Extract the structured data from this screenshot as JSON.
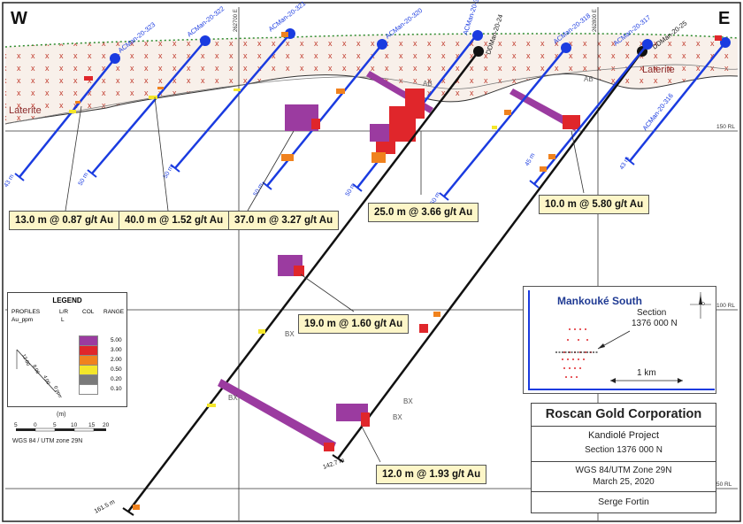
{
  "section_labels": {
    "west": "W",
    "east": "E"
  },
  "units": {
    "laterite_left": "Laterite",
    "laterite_right": "Laterite",
    "ab_1": "AB",
    "ab_2": "AB"
  },
  "rl_labels": {
    "rl150": "150 RL",
    "rl100": "100 RL",
    "rl50": "50 RL"
  },
  "easting_labels": {
    "e1": "262700 E",
    "e2": "262800 E"
  },
  "holes": [
    {
      "id": "ACMan-20-323",
      "depth": "43 m"
    },
    {
      "id": "ACMan-20-322",
      "depth": "50 m"
    },
    {
      "id": "ACMan-20-321",
      "depth": "50 m"
    },
    {
      "id": "ACMan-20-320",
      "depth": "50 m"
    },
    {
      "id": "ACMan-20-319",
      "depth": "50 m"
    },
    {
      "id": "DDMan-20-24",
      "depth": "161.5 m"
    },
    {
      "id": "ACMan-20-318",
      "depth": "50 m"
    },
    {
      "id": "ACMan-20-317",
      "depth": "45 m"
    },
    {
      "id": "DDMan-20-25",
      "depth": "142.7 m"
    },
    {
      "id": "ACMan-20-316",
      "depth": "43 m"
    }
  ],
  "callouts": [
    "13.0 m @ 0.87 g/t Au",
    "40.0 m @ 1.52 g/t Au",
    "37.0 m @ 3.27 g/t Au",
    "25.0 m @ 3.66 g/t Au",
    "10.0 m @ 5.80 g/t Au",
    "19.0 m @ 1.60 g/t Au",
    "12.0 m @ 1.93 g/t Au"
  ],
  "bx_labels": [
    "BX",
    "BX",
    "BX",
    "BX"
  ],
  "legend": {
    "title": "LEGEND",
    "profiles": "PROFILES",
    "au": "Au_ppm",
    "lr": "L/R",
    "l": "L",
    "col": "COL",
    "range": "RANGE",
    "ranges": [
      {
        "value": "5.00",
        "color": "#9b3ba0"
      },
      {
        "value": "3.00",
        "color": "#e0262b"
      },
      {
        "value": "2.00",
        "color": "#f0821e"
      },
      {
        "value": "0.50",
        "color": "#f4e62a"
      },
      {
        "value": "0.20",
        "color": "#7a7a7a"
      },
      {
        "value": "0.10",
        "color": "#ffffff"
      }
    ],
    "scale_ticks": [
      "12.00",
      "8.00",
      "4.00",
      "0 ppm"
    ]
  },
  "scale_bar": {
    "unit": "(m)",
    "ticks": [
      "5",
      "0",
      "5",
      "10",
      "15",
      "20"
    ],
    "datum": "WGS 84 / UTM zone 29N"
  },
  "inset": {
    "title": "Mankouké South",
    "section_label": "Section",
    "section_value": "1376 000 N",
    "scale": "1 km"
  },
  "title_block": {
    "company": "Roscan Gold Corporation",
    "project": "Kandiolé Project",
    "section": "Section 1376 000 N",
    "datum": "WGS 84/UTM Zone 29N",
    "date": "March 25, 2020",
    "author": "Serge Fortin"
  },
  "colors": {
    "hole_ac": "#1a3be0",
    "hole_dd": "#111111",
    "laterite_x": "#c0392b",
    "profile_purple": "#9b3ba0",
    "profile_red": "#e0262b",
    "profile_orange": "#f0821e",
    "profile_yellow": "#f4e62a"
  }
}
